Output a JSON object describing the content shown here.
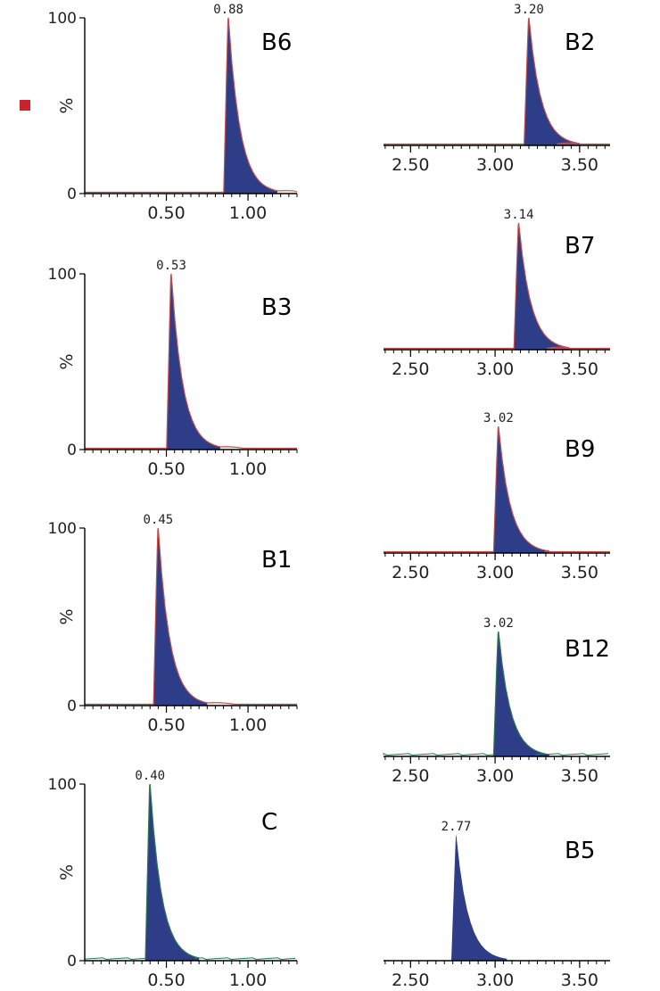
{
  "figure": {
    "marker_color": "#cc2229",
    "peak_fill": "#2e3d87",
    "red_trace": "#c0504d",
    "green_trace": "#2a7a4b",
    "baseline_color": "#000000"
  },
  "chart_data": [
    {
      "type": "area",
      "label": "B6",
      "peak_label": "0.88",
      "peak_x": 0.88,
      "tail": 0.95,
      "xlim": [
        0.0,
        1.3
      ],
      "ylim": [
        0,
        100
      ],
      "xticks": [
        "0.50",
        "1.00"
      ],
      "xtick_values": [
        0.5,
        1.0
      ],
      "yticks": [
        "0",
        "100"
      ],
      "ylabel": "%",
      "trace": "red",
      "y_axis": true
    },
    {
      "type": "area",
      "label": "B2",
      "peak_label": "3.20",
      "peak_x": 3.2,
      "tail": 0.3,
      "xlim": [
        2.34,
        3.68
      ],
      "ylim": [
        0,
        100
      ],
      "xticks": [
        "2.50",
        "3.00",
        "3.50"
      ],
      "xtick_values": [
        2.5,
        3.0,
        3.5
      ],
      "yticks": [],
      "ylabel": "",
      "trace": "red",
      "y_axis": false
    },
    {
      "type": "area",
      "label": "B3",
      "peak_label": "0.53",
      "peak_x": 0.53,
      "tail": 0.8,
      "xlim": [
        0.0,
        1.3
      ],
      "ylim": [
        0,
        100
      ],
      "xticks": [
        "0.50",
        "1.00"
      ],
      "xtick_values": [
        0.5,
        1.0
      ],
      "yticks": [
        "0",
        "100"
      ],
      "ylabel": "%",
      "trace": "red",
      "y_axis": true
    },
    {
      "type": "area",
      "label": "B7",
      "peak_label": "3.14",
      "peak_x": 3.14,
      "tail": 0.3,
      "xlim": [
        2.34,
        3.68
      ],
      "ylim": [
        0,
        100
      ],
      "xticks": [
        "2.50",
        "3.00",
        "3.50"
      ],
      "xtick_values": [
        2.5,
        3.0,
        3.5
      ],
      "yticks": [],
      "ylabel": "",
      "trace": "red",
      "y_axis": false
    },
    {
      "type": "area",
      "label": "B1",
      "peak_label": "0.45",
      "peak_x": 0.45,
      "tail": 0.85,
      "xlim": [
        0.0,
        1.3
      ],
      "ylim": [
        0,
        100
      ],
      "xticks": [
        "0.50",
        "1.00"
      ],
      "xtick_values": [
        0.5,
        1.0
      ],
      "yticks": [
        "0",
        "100"
      ],
      "ylabel": "%",
      "trace": "red",
      "y_axis": true
    },
    {
      "type": "area",
      "label": "B9",
      "peak_label": "3.02",
      "peak_x": 3.02,
      "tail": 0.5,
      "xlim": [
        2.34,
        3.68
      ],
      "ylim": [
        0,
        100
      ],
      "xticks": [
        "2.50",
        "3.00",
        "3.50"
      ],
      "xtick_values": [
        2.5,
        3.0,
        3.5
      ],
      "yticks": [],
      "ylabel": "",
      "trace": "red",
      "y_axis": false
    },
    {
      "type": "area",
      "label": "C",
      "peak_label": "0.40",
      "peak_x": 0.4,
      "tail": 0.5,
      "xlim": [
        0.0,
        1.3
      ],
      "ylim": [
        0,
        100
      ],
      "xticks": [
        "0.50",
        "1.00"
      ],
      "xtick_values": [
        0.5,
        1.0
      ],
      "yticks": [
        "0",
        "100"
      ],
      "ylabel": "%",
      "trace": "green",
      "y_axis": true
    },
    {
      "type": "area",
      "label": "B12",
      "peak_label": "3.02",
      "peak_x": 3.02,
      "tail": 0.4,
      "xlim": [
        2.34,
        3.68
      ],
      "ylim": [
        0,
        100
      ],
      "xticks": [
        "2.50",
        "3.00",
        "3.50"
      ],
      "xtick_values": [
        2.5,
        3.0,
        3.5
      ],
      "yticks": [],
      "ylabel": "",
      "trace": "green",
      "y_axis": false
    },
    {
      "type": "area",
      "label": "B5",
      "peak_label": "2.77",
      "peak_x": 2.77,
      "tail": 0.3,
      "xlim": [
        2.34,
        3.68
      ],
      "ylim": [
        0,
        100
      ],
      "xticks": [
        "2.50",
        "3.00",
        "3.50"
      ],
      "xtick_values": [
        2.5,
        3.0,
        3.5
      ],
      "yticks": [],
      "ylabel": "",
      "trace": "none",
      "y_axis": false
    }
  ]
}
